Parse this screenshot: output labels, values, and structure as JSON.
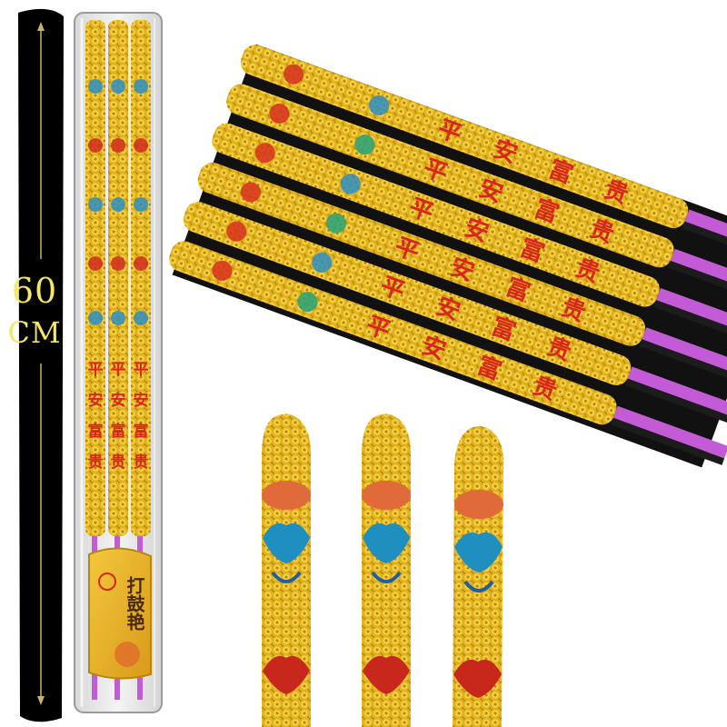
{
  "measurement": {
    "value": "60",
    "unit": "CM"
  },
  "package_label": {
    "text": "打鼓艳"
  },
  "stick_characters": [
    "平",
    "安",
    "富",
    "贵"
  ],
  "colors": {
    "gold": "#e3b51e",
    "gold_dark": "#a87a0e",
    "stick_magenta": "#c35bd6",
    "stick_black": "#1c1c1c",
    "red_text": "#d8261a",
    "lotus_blue": "#1f8fbf",
    "lotus_red": "#c8281c",
    "measure_bar": "#000000",
    "measure_text": "#f5e663"
  }
}
